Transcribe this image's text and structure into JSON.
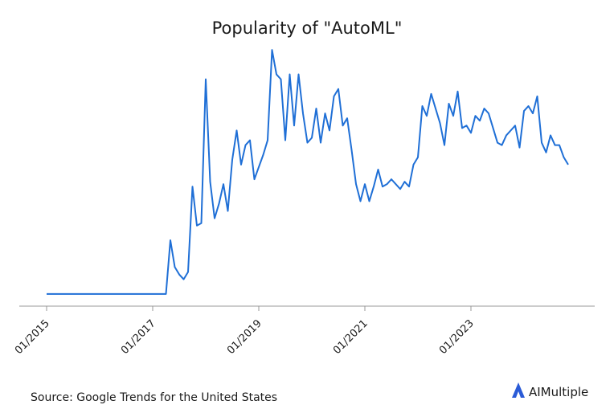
{
  "chart_data": {
    "type": "line",
    "title": "Popularity of \"AutoML\"",
    "source": "Source: Google Trends for the United States",
    "brand": "AIMultiple",
    "x": [
      "01/2015",
      "02/2015",
      "03/2015",
      "04/2015",
      "05/2015",
      "06/2015",
      "07/2015",
      "08/2015",
      "09/2015",
      "10/2015",
      "11/2015",
      "12/2015",
      "01/2016",
      "02/2016",
      "03/2016",
      "04/2016",
      "05/2016",
      "06/2016",
      "07/2016",
      "08/2016",
      "09/2016",
      "10/2016",
      "11/2016",
      "12/2016",
      "01/2017",
      "02/2017",
      "03/2017",
      "04/2017",
      "05/2017",
      "06/2017",
      "07/2017",
      "08/2017",
      "09/2017",
      "10/2017",
      "11/2017",
      "12/2017",
      "01/2018",
      "02/2018",
      "03/2018",
      "04/2018",
      "05/2018",
      "06/2018",
      "07/2018",
      "08/2018",
      "09/2018",
      "10/2018",
      "11/2018",
      "12/2018",
      "01/2019",
      "02/2019",
      "03/2019",
      "04/2019",
      "05/2019",
      "06/2019",
      "07/2019",
      "08/2019",
      "09/2019",
      "10/2019",
      "11/2019",
      "12/2019",
      "01/2020",
      "02/2020",
      "03/2020",
      "04/2020",
      "05/2020",
      "06/2020",
      "07/2020",
      "08/2020",
      "09/2020",
      "10/2020",
      "11/2020",
      "12/2020",
      "01/2021",
      "02/2021",
      "03/2021",
      "04/2021",
      "05/2021",
      "06/2021",
      "07/2021",
      "08/2021",
      "09/2021",
      "10/2021",
      "11/2021",
      "12/2021",
      "01/2022",
      "02/2022",
      "03/2022",
      "04/2022",
      "05/2022",
      "06/2022",
      "07/2022",
      "08/2022",
      "09/2022",
      "10/2022",
      "11/2022",
      "12/2022",
      "01/2023",
      "02/2023",
      "03/2023",
      "04/2023",
      "05/2023",
      "06/2023",
      "07/2023",
      "08/2023",
      "09/2023",
      "10/2023",
      "11/2023",
      "12/2023",
      "01/2024",
      "02/2024",
      "03/2024",
      "04/2024",
      "05/2024",
      "06/2024",
      "07/2024",
      "08/2024",
      "09/2024",
      "10/2024",
      "11/2024"
    ],
    "series": [
      {
        "color": "#1f6fd6",
        "values": [
          0,
          0,
          0,
          0,
          0,
          0,
          0,
          0,
          0,
          0,
          0,
          0,
          0,
          0,
          0,
          0,
          0,
          0,
          0,
          0,
          0,
          0,
          0,
          0,
          0,
          0,
          0,
          0,
          22,
          11,
          8,
          6,
          9,
          44,
          28,
          29,
          88,
          46,
          31,
          37,
          45,
          34,
          55,
          67,
          53,
          61,
          63,
          47,
          52,
          57,
          63,
          100,
          90,
          88,
          63,
          90,
          69,
          90,
          74,
          62,
          64,
          76,
          62,
          74,
          67,
          81,
          84,
          69,
          72,
          59,
          45,
          38,
          45,
          38,
          44,
          51,
          44,
          45,
          47,
          45,
          43,
          46,
          44,
          53,
          56,
          77,
          73,
          82,
          76,
          70,
          61,
          78,
          73,
          83,
          68,
          69,
          66,
          73,
          71,
          76,
          74,
          68,
          62,
          61,
          65,
          67,
          69,
          60,
          75,
          77,
          74,
          81,
          62,
          58,
          65,
          61,
          61,
          56,
          53
        ]
      }
    ],
    "ylim": [
      -5,
      105
    ]
  }
}
